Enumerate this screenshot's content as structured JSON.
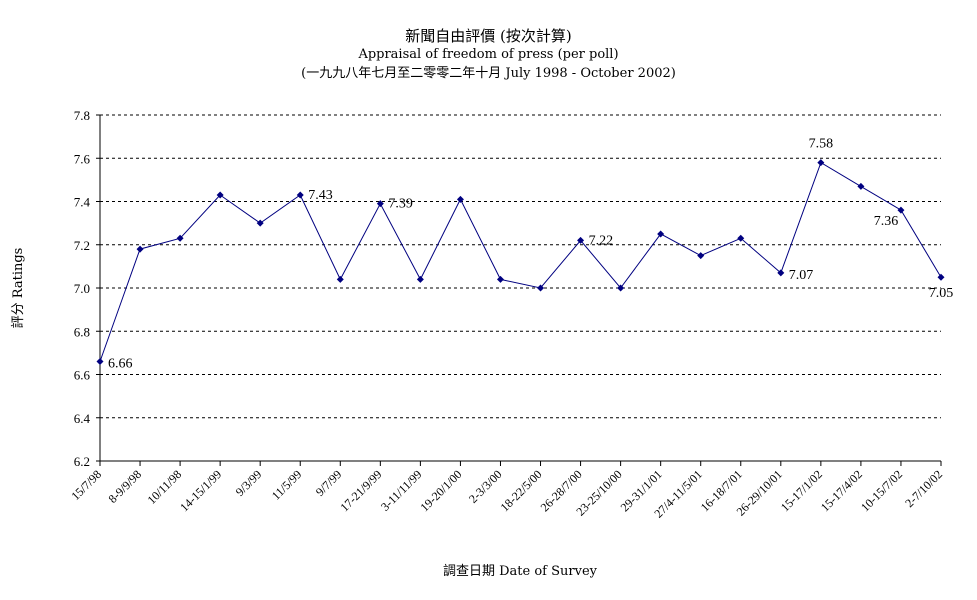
{
  "title": {
    "zh": "新聞自由評價 (按次計算)",
    "en": "Appraisal of freedom of press (per poll)",
    "range": "(一九九八年七月至二零零二年十月 July 1998 - October 2002)"
  },
  "chart_data": {
    "type": "line",
    "title": "新聞自由評價 (按次計算) Appraisal of freedom of press (per poll)",
    "subtitle": "(一九九八年七月至二零零二年十月 July 1998 - October 2002)",
    "xlabel": "調查日期 Date of Survey",
    "ylabel": "評分 Ratings",
    "ylim": [
      6.2,
      7.8
    ],
    "yticks": [
      "6.2",
      "6.4",
      "6.6",
      "6.8",
      "7.0",
      "7.2",
      "7.4",
      "7.6",
      "7.8"
    ],
    "grid": "horizontal dashed",
    "categories": [
      "15/7/98",
      "8-9/9/98",
      "10/11/98",
      "14-15/1/99",
      "9/3/99",
      "11/5/99",
      "9/7/99",
      "17-21/9/99",
      "3-11/11/99",
      "19-20/1/00",
      "2-3/3/00",
      "18-22/5/00",
      "26-28/7/00",
      "23-25/10/00",
      "29-31/1/01",
      "27/4-11/5/01",
      "16-18/7/01",
      "26-29/10/01",
      "15-17/1/02",
      "15-17/4/02",
      "10-15/7/02",
      "2-7/10/02"
    ],
    "values": [
      6.66,
      7.18,
      7.23,
      7.43,
      7.3,
      7.43,
      7.04,
      7.39,
      7.04,
      7.41,
      7.04,
      7.0,
      7.22,
      7.0,
      7.25,
      7.15,
      7.23,
      7.07,
      7.58,
      7.47,
      7.36,
      7.05
    ],
    "data_labels": [
      {
        "index": 0,
        "text": "6.66"
      },
      {
        "index": 5,
        "text": "7.43"
      },
      {
        "index": 7,
        "text": "7.39"
      },
      {
        "index": 12,
        "text": "7.22"
      },
      {
        "index": 17,
        "text": "7.07"
      },
      {
        "index": 18,
        "text": "7.58"
      },
      {
        "index": 20,
        "text": "7.36"
      },
      {
        "index": 21,
        "text": "7.05"
      }
    ],
    "colors": {
      "line": "#000080",
      "marker": "#000080",
      "grid": "#000000"
    }
  }
}
